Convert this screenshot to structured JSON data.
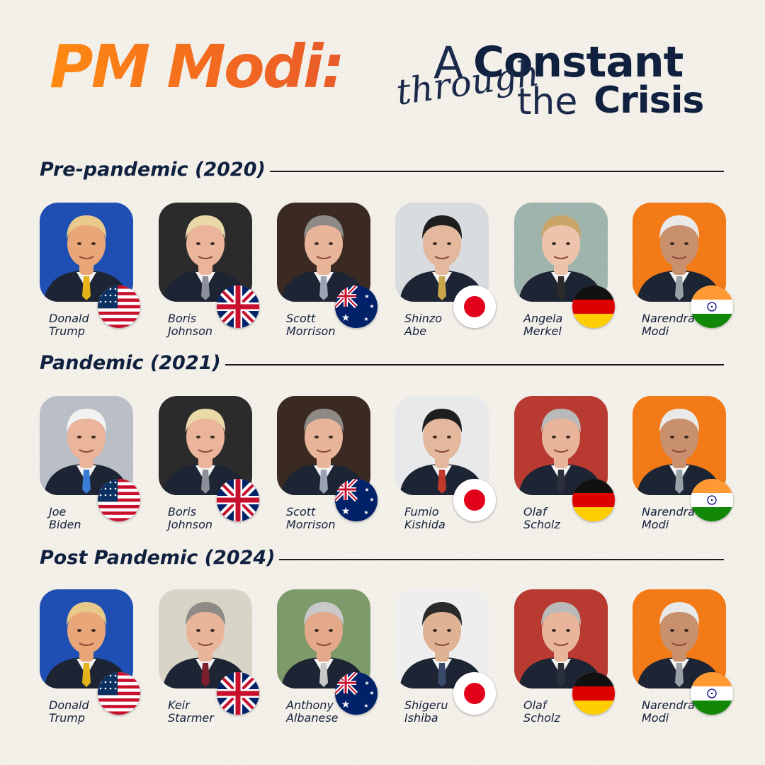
{
  "title": {
    "part1": "PM Modi:",
    "a": "A",
    "constant": "Constant",
    "through": "through",
    "the": "the",
    "crisis": "Crisis"
  },
  "colors": {
    "accent_orange": "#f36a1f",
    "navy": "#10203f",
    "background": "#f3efe9"
  },
  "sections": [
    {
      "label": "Pre-pandemic (2020)",
      "leaders": [
        {
          "first": "Donald",
          "last": "Trump",
          "flag": "usa-flag-icon",
          "bg": "#1f4fb3",
          "skin": "#e9a679",
          "hair": "#e8c98a",
          "tie": "#e6b21a"
        },
        {
          "first": "Boris",
          "last": "Johnson",
          "flag": "uk-flag-icon",
          "bg": "#2b2b2b",
          "skin": "#eab59a",
          "hair": "#e9d9a8",
          "tie": "#8a8f9a"
        },
        {
          "first": "Scott",
          "last": "Morrison",
          "flag": "australia-flag-icon",
          "bg": "#3a2a22",
          "skin": "#e8b49a",
          "hair": "#8d8a86",
          "tie": "#9aa3b5"
        },
        {
          "first": "Shinzo",
          "last": "Abe",
          "flag": "japan-flag-icon",
          "bg": "#d9dcdf",
          "skin": "#e3b89c",
          "hair": "#1e1e1e",
          "tie": "#c9a74a"
        },
        {
          "first": "Angela",
          "last": "Merkel",
          "flag": "germany-flag-icon",
          "bg": "#9fb4ad",
          "skin": "#edc3ab",
          "hair": "#c9a56a",
          "tie": "#2b2b2b"
        },
        {
          "first": "Narendra",
          "last": "Modi",
          "flag": "india-flag-icon",
          "bg": "#f27a17",
          "skin": "#c9906e",
          "hair": "#e9e9e9",
          "tie": "#9aa0a8"
        }
      ]
    },
    {
      "label": "Pandemic (2021)",
      "leaders": [
        {
          "first": "Joe",
          "last": "Biden",
          "flag": "usa-flag-icon",
          "bg": "#b9bec7",
          "skin": "#eab59a",
          "hair": "#f2f2f2",
          "tie": "#3a7bd5"
        },
        {
          "first": "Boris",
          "last": "Johnson",
          "flag": "uk-flag-icon",
          "bg": "#2b2b2b",
          "skin": "#eab59a",
          "hair": "#e9d9a8",
          "tie": "#8a8f9a"
        },
        {
          "first": "Scott",
          "last": "Morrison",
          "flag": "australia-flag-icon",
          "bg": "#3a2a22",
          "skin": "#e8b49a",
          "hair": "#8d8a86",
          "tie": "#9aa3b5"
        },
        {
          "first": "Fumio",
          "last": "Kishida",
          "flag": "japan-flag-icon",
          "bg": "#e8e9ea",
          "skin": "#e3b89c",
          "hair": "#1e1e1e",
          "tie": "#c0392b"
        },
        {
          "first": "Olaf",
          "last": "Scholz",
          "flag": "germany-flag-icon",
          "bg": "#b83a30",
          "skin": "#e8b49a",
          "hair": "#b9b9b9",
          "tie": "#2b2f3a"
        },
        {
          "first": "Narendra",
          "last": "Modi",
          "flag": "india-flag-icon",
          "bg": "#f27a17",
          "skin": "#c9906e",
          "hair": "#e9e9e9",
          "tie": "#9aa0a8"
        }
      ]
    },
    {
      "label": "Post Pandemic (2024)",
      "leaders": [
        {
          "first": "Donald",
          "last": "Trump",
          "flag": "usa-flag-icon",
          "bg": "#1f4fb3",
          "skin": "#e9a679",
          "hair": "#e8c98a",
          "tie": "#e6b21a"
        },
        {
          "first": "Keir",
          "last": "Starmer",
          "flag": "uk-flag-icon",
          "bg": "#d8d4c8",
          "skin": "#e8b49a",
          "hair": "#8e8a86",
          "tie": "#7a1f2b"
        },
        {
          "first": "Anthony",
          "last": "Albanese",
          "flag": "australia-flag-icon",
          "bg": "#7e9a6a",
          "skin": "#e3a98a",
          "hair": "#c9c9c9",
          "tie": "#c9c9c9"
        },
        {
          "first": "Shigeru",
          "last": "Ishiba",
          "flag": "japan-flag-icon",
          "bg": "#eeeeee",
          "skin": "#e0b294",
          "hair": "#2a2a2a",
          "tie": "#3a4a6a"
        },
        {
          "first": "Olaf",
          "last": "Scholz",
          "flag": "germany-flag-icon",
          "bg": "#b83a30",
          "skin": "#e8b49a",
          "hair": "#b9b9b9",
          "tie": "#2b2f3a"
        },
        {
          "first": "Narendra",
          "last": "Modi",
          "flag": "india-flag-icon",
          "bg": "#f27a17",
          "skin": "#c9906e",
          "hair": "#e9e9e9",
          "tie": "#9aa0a8"
        }
      ]
    }
  ]
}
